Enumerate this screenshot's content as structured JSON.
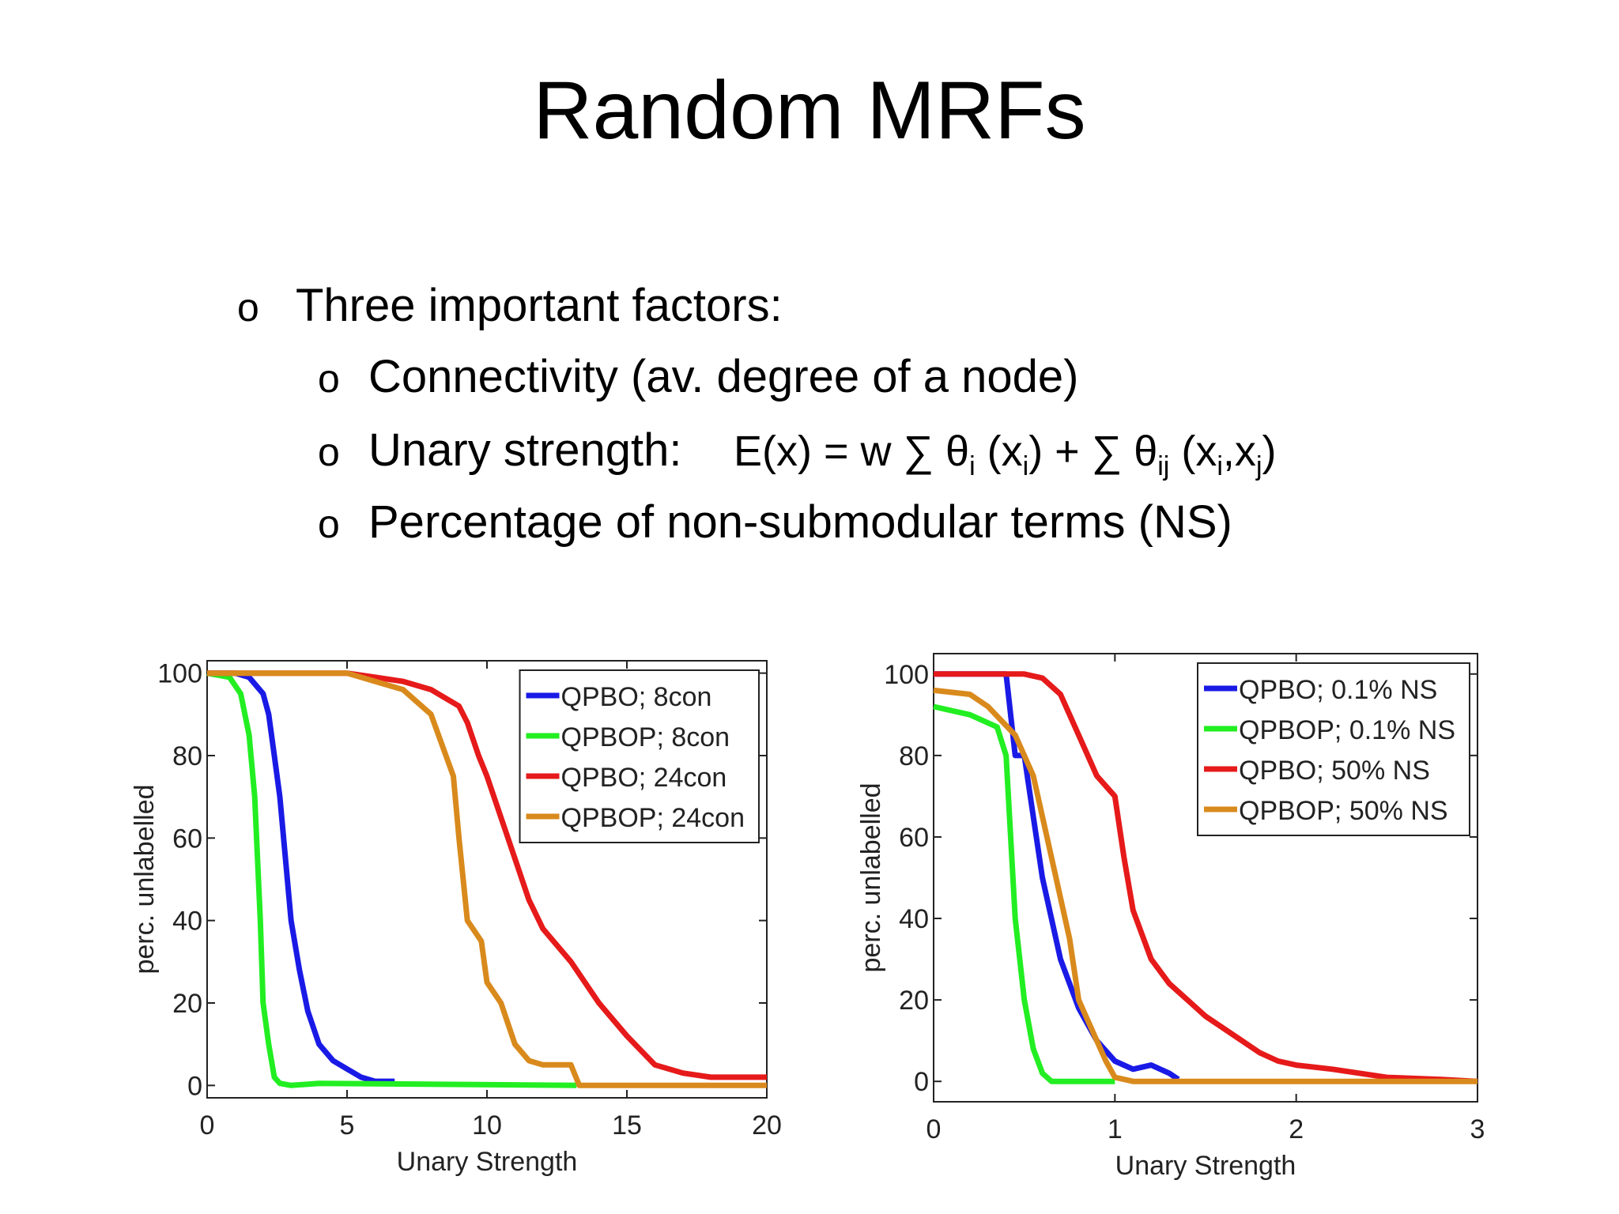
{
  "title": "Random MRFs",
  "bullets": {
    "text": "Three important factors:",
    "items": [
      "Connectivity (av. degree of a node)",
      "Unary strength:",
      "Percentage of non-submodular terms (NS)"
    ],
    "formula": [
      "E(x) = w ∑ θ",
      "i",
      " (x",
      "i",
      ") + ∑ θ",
      "ij",
      " (x",
      "i",
      ",x",
      "j",
      ")"
    ]
  },
  "chart_data": [
    {
      "type": "line",
      "xlabel": "Unary Strength",
      "ylabel": "perc. unlabelled",
      "xlim": [
        0,
        20
      ],
      "ylim": [
        -3,
        103
      ],
      "xticks": [
        0,
        5,
        10,
        15,
        20
      ],
      "yticks": [
        0,
        20,
        40,
        60,
        80,
        100
      ],
      "legend": "upper right",
      "series": [
        {
          "name": "QPBO; 8con",
          "color": "#1a1ae6",
          "x": [
            0,
            1,
            1.5,
            2,
            2.2,
            2.4,
            2.6,
            2.8,
            3,
            3.3,
            3.6,
            4,
            4.5,
            5,
            5.5,
            6,
            6.5,
            6.7
          ],
          "values": [
            100,
            100,
            99,
            95,
            90,
            80,
            70,
            55,
            40,
            28,
            18,
            10,
            6,
            4,
            2,
            1,
            1,
            1
          ]
        },
        {
          "name": "QPBOP; 8con",
          "color": "#22ee22",
          "x": [
            0,
            0.8,
            1.2,
            1.5,
            1.7,
            1.9,
            2,
            2.2,
            2.4,
            2.6,
            3,
            4,
            13.2
          ],
          "values": [
            100,
            99,
            95,
            85,
            70,
            40,
            20,
            10,
            2,
            0.5,
            0,
            0.5,
            0
          ]
        },
        {
          "name": "QPBO; 24con",
          "color": "#e61a1a",
          "x": [
            0,
            5,
            6,
            7,
            8,
            9,
            9.3,
            9.7,
            10,
            10.5,
            11,
            11.5,
            12,
            13,
            14,
            15,
            16,
            17,
            18,
            19,
            20
          ],
          "values": [
            100,
            100,
            99,
            98,
            96,
            92,
            88,
            80,
            75,
            65,
            55,
            45,
            38,
            30,
            20,
            12,
            5,
            3,
            2,
            2,
            2
          ]
        },
        {
          "name": "QPBOP; 24con",
          "color": "#d98a1c",
          "x": [
            0,
            5,
            6,
            7,
            8,
            8.8,
            9,
            9.3,
            9.8,
            10,
            10.5,
            11,
            11.5,
            12,
            13,
            13.3,
            20
          ],
          "values": [
            100,
            100,
            98,
            96,
            90,
            75,
            60,
            40,
            35,
            25,
            20,
            10,
            6,
            5,
            5,
            0,
            0
          ]
        }
      ]
    },
    {
      "type": "line",
      "xlabel": "Unary Strength",
      "ylabel": "perc. unlabelled",
      "xlim": [
        0,
        3
      ],
      "ylim": [
        -5,
        105
      ],
      "xticks": [
        0,
        1,
        2,
        3
      ],
      "yticks": [
        0,
        20,
        40,
        60,
        80,
        100
      ],
      "legend": "upper right",
      "series": [
        {
          "name": "QPBO; 0.1% NS",
          "color": "#1a1ae6",
          "x": [
            0,
            0.4,
            0.45,
            0.5,
            0.55,
            0.6,
            0.7,
            0.8,
            0.9,
            1.0,
            1.1,
            1.2,
            1.3,
            1.35
          ],
          "values": [
            100,
            100,
            80,
            80,
            65,
            50,
            30,
            18,
            10,
            5,
            3,
            4,
            2,
            0.5
          ]
        },
        {
          "name": "QPBOP; 0.1% NS",
          "color": "#22ee22",
          "x": [
            0,
            0.2,
            0.35,
            0.4,
            0.45,
            0.5,
            0.55,
            0.6,
            0.65,
            1.0
          ],
          "values": [
            92,
            90,
            87,
            80,
            40,
            20,
            8,
            2,
            0,
            0
          ]
        },
        {
          "name": "QPBO; 50% NS",
          "color": "#e61a1a",
          "x": [
            0,
            0.5,
            0.6,
            0.7,
            0.8,
            0.9,
            1.0,
            1.05,
            1.1,
            1.2,
            1.3,
            1.4,
            1.5,
            1.6,
            1.7,
            1.8,
            1.9,
            2.0,
            2.2,
            2.5,
            2.8,
            3
          ],
          "values": [
            100,
            100,
            99,
            95,
            85,
            75,
            70,
            55,
            42,
            30,
            24,
            20,
            16,
            13,
            10,
            7,
            5,
            4,
            3,
            1,
            0.5,
            0
          ]
        },
        {
          "name": "QPBOP; 50% NS",
          "color": "#d98a1c",
          "x": [
            0,
            0.2,
            0.3,
            0.45,
            0.55,
            0.65,
            0.75,
            0.8,
            0.9,
            0.95,
            1.0,
            1.1,
            3
          ],
          "values": [
            96,
            95,
            92,
            85,
            75,
            55,
            35,
            20,
            10,
            5,
            1,
            0,
            0
          ]
        }
      ]
    }
  ]
}
